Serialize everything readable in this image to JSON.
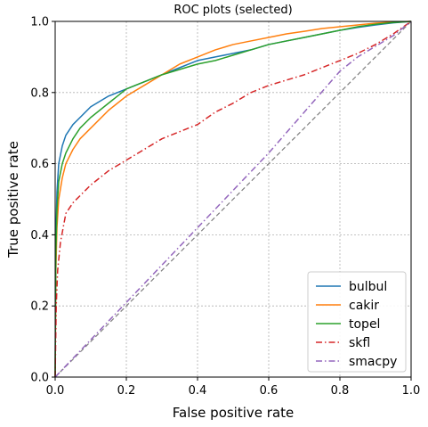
{
  "chart_data": {
    "type": "line",
    "title": "ROC plots (selected)",
    "xlabel": "False positive rate",
    "ylabel": "True positive rate",
    "xlim": [
      0.0,
      1.0
    ],
    "ylim": [
      0.0,
      1.0
    ],
    "xticks": [
      "0.0",
      "0.2",
      "0.4",
      "0.6",
      "0.8",
      "1.0"
    ],
    "yticks": [
      "0.0",
      "0.2",
      "0.4",
      "0.6",
      "0.8",
      "1.0"
    ],
    "grid": true,
    "legend_position": "lower-right",
    "reference_line": {
      "x": [
        0,
        1
      ],
      "y": [
        0,
        1
      ],
      "color": "#7f7f7f",
      "style": "dashed"
    },
    "series": [
      {
        "name": "bulbul",
        "color": "#1f77b4",
        "style": "solid",
        "x": [
          0,
          0.002,
          0.005,
          0.01,
          0.02,
          0.03,
          0.05,
          0.07,
          0.1,
          0.15,
          0.2,
          0.25,
          0.3,
          0.35,
          0.4,
          0.45,
          0.5,
          0.55,
          0.6,
          0.65,
          0.7,
          0.75,
          0.8,
          0.85,
          0.9,
          0.95,
          1.0
        ],
        "y": [
          0,
          0.4,
          0.52,
          0.6,
          0.65,
          0.68,
          0.71,
          0.73,
          0.76,
          0.79,
          0.81,
          0.83,
          0.85,
          0.87,
          0.89,
          0.9,
          0.91,
          0.92,
          0.935,
          0.945,
          0.955,
          0.965,
          0.975,
          0.983,
          0.99,
          0.996,
          1.0
        ]
      },
      {
        "name": "cakir",
        "color": "#ff7f0e",
        "style": "solid",
        "x": [
          0,
          0.002,
          0.005,
          0.01,
          0.02,
          0.03,
          0.05,
          0.07,
          0.1,
          0.15,
          0.2,
          0.25,
          0.3,
          0.35,
          0.4,
          0.45,
          0.5,
          0.55,
          0.6,
          0.65,
          0.7,
          0.75,
          0.8,
          0.85,
          0.9,
          0.95,
          1.0
        ],
        "y": [
          0,
          0.3,
          0.42,
          0.5,
          0.56,
          0.6,
          0.64,
          0.67,
          0.7,
          0.75,
          0.79,
          0.82,
          0.85,
          0.88,
          0.9,
          0.92,
          0.935,
          0.945,
          0.955,
          0.965,
          0.972,
          0.98,
          0.985,
          0.99,
          0.995,
          0.998,
          1.0
        ]
      },
      {
        "name": "topel",
        "color": "#2ca02c",
        "style": "solid",
        "x": [
          0,
          0.002,
          0.005,
          0.01,
          0.02,
          0.03,
          0.05,
          0.07,
          0.1,
          0.15,
          0.2,
          0.25,
          0.3,
          0.35,
          0.4,
          0.45,
          0.5,
          0.55,
          0.6,
          0.65,
          0.7,
          0.75,
          0.8,
          0.85,
          0.9,
          0.95,
          1.0
        ],
        "y": [
          0,
          0.35,
          0.47,
          0.55,
          0.6,
          0.63,
          0.67,
          0.7,
          0.73,
          0.77,
          0.81,
          0.83,
          0.85,
          0.865,
          0.88,
          0.89,
          0.905,
          0.92,
          0.935,
          0.945,
          0.955,
          0.965,
          0.975,
          0.985,
          0.992,
          0.997,
          1.0
        ]
      },
      {
        "name": "skfl",
        "color": "#d62728",
        "style": "dashdot",
        "x": [
          0,
          0.003,
          0.007,
          0.015,
          0.03,
          0.05,
          0.08,
          0.1,
          0.15,
          0.2,
          0.25,
          0.3,
          0.35,
          0.4,
          0.45,
          0.5,
          0.55,
          0.6,
          0.65,
          0.7,
          0.75,
          0.8,
          0.85,
          0.9,
          0.95,
          1.0
        ],
        "y": [
          0,
          0.2,
          0.3,
          0.38,
          0.46,
          0.49,
          0.52,
          0.54,
          0.58,
          0.61,
          0.64,
          0.67,
          0.69,
          0.71,
          0.745,
          0.77,
          0.8,
          0.82,
          0.835,
          0.85,
          0.87,
          0.89,
          0.91,
          0.935,
          0.965,
          1.0
        ]
      },
      {
        "name": "smacpy",
        "color": "#9467bd",
        "style": "dashdot",
        "x": [
          0,
          0.2,
          0.4,
          0.6,
          0.8,
          0.85,
          0.9,
          0.95,
          1.0
        ],
        "y": [
          0,
          0.21,
          0.42,
          0.63,
          0.86,
          0.9,
          0.93,
          0.96,
          1.0
        ]
      }
    ]
  }
}
